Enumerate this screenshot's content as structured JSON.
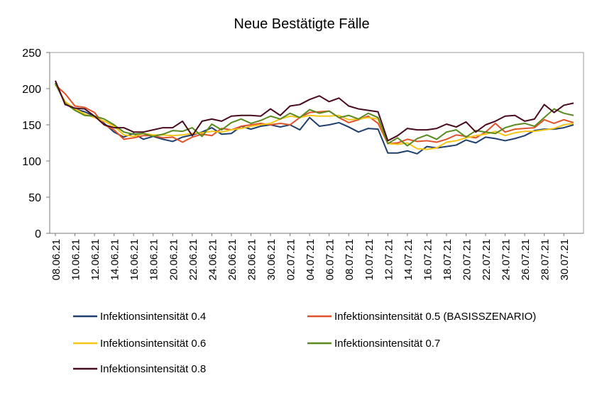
{
  "chart_data": {
    "type": "line",
    "title": "Neue Bestätigte Fälle",
    "xlabel": "",
    "ylabel": "",
    "ylim": [
      0,
      250
    ],
    "yticks": [
      0,
      50,
      100,
      150,
      200,
      250
    ],
    "grid": false,
    "legend_position": "bottom",
    "x": [
      "08.06.21",
      "09.06.21",
      "10.06.21",
      "11.06.21",
      "12.06.21",
      "13.06.21",
      "14.06.21",
      "15.06.21",
      "16.06.21",
      "17.06.21",
      "18.06.21",
      "19.06.21",
      "20.06.21",
      "21.06.21",
      "22.06.21",
      "23.06.21",
      "24.06.21",
      "25.06.21",
      "26.06.21",
      "27.06.21",
      "28.06.21",
      "29.06.21",
      "30.06.21",
      "01.07.21",
      "02.07.21",
      "03.07.21",
      "04.07.21",
      "05.07.21",
      "06.07.21",
      "07.07.21",
      "08.07.21",
      "09.07.21",
      "10.07.21",
      "11.07.21",
      "12.07.21",
      "13.07.21",
      "14.07.21",
      "15.07.21",
      "16.07.21",
      "17.07.21",
      "18.07.21",
      "19.07.21",
      "20.07.21",
      "21.07.21",
      "22.07.21",
      "23.07.21",
      "24.07.21",
      "25.07.21",
      "26.07.21",
      "27.07.21",
      "28.07.21",
      "29.07.21",
      "30.07.21",
      "31.07.21"
    ],
    "xtick_labels": [
      "08.06.21",
      "10.06.21",
      "12.06.21",
      "14.06.21",
      "16.06.21",
      "18.06.21",
      "20.06.21",
      "22.06.21",
      "24.06.21",
      "26.06.21",
      "28.06.21",
      "30.06.21",
      "02.07.21",
      "04.07.21",
      "06.07.21",
      "08.07.21",
      "10.07.21",
      "12.07.21",
      "14.07.21",
      "16.07.21",
      "18.07.21",
      "20.07.21",
      "22.07.21",
      "24.07.21",
      "26.07.21",
      "28.07.21",
      "30.07.21"
    ],
    "series": [
      {
        "name": "Infektionsintensität 0.4",
        "color": "#1f3f6e",
        "values": [
          208,
          180,
          172,
          168,
          162,
          152,
          140,
          133,
          138,
          130,
          134,
          130,
          127,
          133,
          136,
          140,
          146,
          137,
          138,
          148,
          144,
          148,
          150,
          147,
          150,
          143,
          160,
          148,
          150,
          153,
          147,
          140,
          145,
          144,
          111,
          111,
          114,
          110,
          120,
          118,
          120,
          122,
          129,
          125,
          133,
          131,
          128,
          131,
          135,
          142,
          144,
          144,
          146,
          150
        ]
      },
      {
        "name": "Infektionsintensität 0.5 (BASISSZENARIO)",
        "color": "#e0522a",
        "values": [
          205,
          193,
          176,
          174,
          167,
          150,
          143,
          130,
          132,
          135,
          135,
          132,
          133,
          126,
          133,
          137,
          135,
          145,
          143,
          148,
          150,
          152,
          150,
          152,
          150,
          160,
          167,
          168,
          169,
          160,
          153,
          157,
          162,
          152,
          124,
          125,
          130,
          127,
          128,
          126,
          130,
          136,
          134,
          132,
          140,
          152,
          140,
          144,
          145,
          146,
          157,
          152,
          157,
          153
        ]
      },
      {
        "name": "Infektionsintensität 0.6",
        "color": "#f5c518",
        "values": [
          206,
          182,
          172,
          165,
          160,
          155,
          148,
          136,
          134,
          138,
          136,
          136,
          135,
          136,
          138,
          139,
          141,
          140,
          143,
          145,
          148,
          150,
          152,
          158,
          162,
          160,
          163,
          162,
          162,
          163,
          157,
          158,
          160,
          158,
          124,
          123,
          125,
          117,
          116,
          118,
          126,
          128,
          132,
          135,
          137,
          141,
          135,
          139,
          141,
          141,
          143,
          145,
          150,
          152
        ]
      },
      {
        "name": "Infektionsintensität 0.7",
        "color": "#5a8a20",
        "values": [
          207,
          180,
          170,
          163,
          162,
          158,
          150,
          140,
          137,
          138,
          134,
          137,
          142,
          141,
          146,
          134,
          151,
          143,
          153,
          158,
          152,
          156,
          162,
          158,
          166,
          160,
          171,
          166,
          169,
          160,
          163,
          158,
          166,
          160,
          124,
          132,
          121,
          131,
          136,
          130,
          140,
          143,
          133,
          142,
          140,
          138,
          146,
          150,
          152,
          148,
          160,
          172,
          166,
          163
        ]
      },
      {
        "name": "Infektionsintensität 0.8",
        "color": "#4a0a1e",
        "values": [
          211,
          178,
          173,
          172,
          162,
          150,
          146,
          146,
          140,
          140,
          143,
          146,
          146,
          155,
          135,
          155,
          158,
          155,
          162,
          163,
          163,
          162,
          172,
          163,
          176,
          178,
          185,
          190,
          182,
          187,
          176,
          172,
          170,
          168,
          128,
          135,
          145,
          143,
          143,
          145,
          151,
          147,
          154,
          140,
          150,
          155,
          162,
          163,
          155,
          158,
          178,
          167,
          177,
          180
        ]
      }
    ]
  }
}
